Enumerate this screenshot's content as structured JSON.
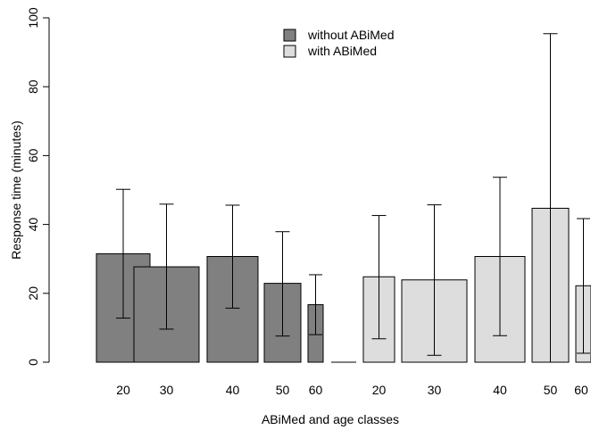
{
  "chart_data": {
    "type": "bar",
    "title": "",
    "xlabel": "ABiMed and age classes",
    "ylabel": "Response time (minutes)",
    "ylim": [
      0,
      100
    ],
    "yticks": [
      "0",
      "20",
      "40",
      "60",
      "80",
      "100"
    ],
    "legend": {
      "placement": "top-center",
      "entries": [
        "without ABiMed",
        "with ABiMed"
      ]
    },
    "groups": [
      {
        "name": "without ABiMed",
        "color": "#808080",
        "categories": [
          "20",
          "30",
          "40",
          "50",
          "60",
          ""
        ],
        "values": [
          31.5,
          27.7,
          30.7,
          22.9,
          16.7,
          0
        ],
        "error_low": [
          12.8,
          9.6,
          15.7,
          7.6,
          8.0,
          0
        ],
        "error_high": [
          50.2,
          45.9,
          45.6,
          37.9,
          25.4,
          0
        ]
      },
      {
        "name": "with ABiMed",
        "color": "#dddddd",
        "categories": [
          "20",
          "30",
          "40",
          "50",
          "60"
        ],
        "values": [
          24.8,
          23.9,
          30.7,
          44.7,
          22.2
        ],
        "error_low": [
          6.8,
          2.0,
          7.7,
          0,
          2.6
        ],
        "error_high": [
          42.6,
          45.7,
          53.7,
          95.4,
          41.7
        ]
      }
    ]
  }
}
